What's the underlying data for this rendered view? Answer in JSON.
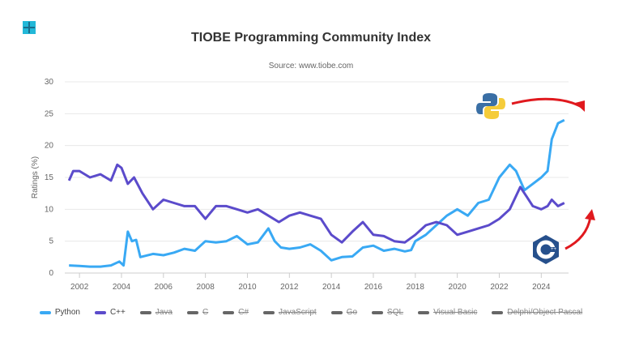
{
  "chart_data": {
    "type": "line",
    "title": "TIOBE Programming Community Index",
    "subtitle": "Source: www.tiobe.com",
    "xlabel": "",
    "ylabel": "Ratings (%)",
    "ylim": [
      0,
      30
    ],
    "xlim": [
      2001.3,
      2025.3
    ],
    "yticks": [
      0,
      5,
      10,
      15,
      20,
      25,
      30
    ],
    "xticks": [
      2002,
      2004,
      2006,
      2008,
      2010,
      2012,
      2014,
      2016,
      2018,
      2020,
      2022,
      2024
    ],
    "grid": true,
    "legend_position": "bottom",
    "series": [
      {
        "name": "Python",
        "color": "#39a9f4",
        "visible": true,
        "x": [
          2001.5,
          2002,
          2002.5,
          2003,
          2003.5,
          2003.9,
          2004.1,
          2004.3,
          2004.5,
          2004.7,
          2004.9,
          2005.5,
          2006,
          2006.5,
          2007,
          2007.5,
          2008,
          2008.5,
          2009,
          2009.5,
          2010,
          2010.5,
          2011,
          2011.3,
          2011.6,
          2012,
          2012.5,
          2013,
          2013.5,
          2014,
          2014.5,
          2015,
          2015.5,
          2016,
          2016.5,
          2017,
          2017.5,
          2017.8,
          2018,
          2018.5,
          2019,
          2019.5,
          2020,
          2020.5,
          2021,
          2021.5,
          2022,
          2022.5,
          2022.8,
          2023.2,
          2023.6,
          2024,
          2024.3,
          2024.5,
          2024.8,
          2025.1
        ],
        "y": [
          1.2,
          1.1,
          1.0,
          1.0,
          1.2,
          1.8,
          1.2,
          6.5,
          5.0,
          5.2,
          2.5,
          3.0,
          2.8,
          3.2,
          3.8,
          3.5,
          5.0,
          4.8,
          5.0,
          5.8,
          4.5,
          4.8,
          7.0,
          5.0,
          4.0,
          3.8,
          4.0,
          4.5,
          3.5,
          2.0,
          2.5,
          2.6,
          4.0,
          4.3,
          3.5,
          3.8,
          3.4,
          3.6,
          5.0,
          6.0,
          7.5,
          9.0,
          10.0,
          9.0,
          11.0,
          11.5,
          15.0,
          17.0,
          16.0,
          13.0,
          14.0,
          15.0,
          16.0,
          21.0,
          23.5,
          24.0
        ]
      },
      {
        "name": "C++",
        "color": "#5b4bcb",
        "visible": true,
        "x": [
          2001.5,
          2001.7,
          2002,
          2002.5,
          2003,
          2003.5,
          2003.8,
          2004,
          2004.3,
          2004.6,
          2005,
          2005.5,
          2006,
          2006.5,
          2007,
          2007.5,
          2008,
          2008.5,
          2009,
          2009.5,
          2010,
          2010.5,
          2011,
          2011.5,
          2012,
          2012.5,
          2013,
          2013.5,
          2014,
          2014.5,
          2015,
          2015.5,
          2016,
          2016.5,
          2017,
          2017.5,
          2018,
          2018.5,
          2019,
          2019.5,
          2020,
          2020.5,
          2021,
          2021.5,
          2022,
          2022.5,
          2023,
          2023.3,
          2023.6,
          2024,
          2024.3,
          2024.5,
          2024.8,
          2025.1
        ],
        "y": [
          14.5,
          16.0,
          16.0,
          15.0,
          15.5,
          14.5,
          17.0,
          16.5,
          14.0,
          15.0,
          12.5,
          10.0,
          11.5,
          11.0,
          10.5,
          10.5,
          8.5,
          10.5,
          10.5,
          10.0,
          9.5,
          10.0,
          9.0,
          8.0,
          9.0,
          9.5,
          9.0,
          8.5,
          6.0,
          4.8,
          6.5,
          8.0,
          6.0,
          5.8,
          5.0,
          4.8,
          6.0,
          7.5,
          8.0,
          7.5,
          6.0,
          6.5,
          7.0,
          7.5,
          8.5,
          10.0,
          13.5,
          12.0,
          10.5,
          10.0,
          10.5,
          11.5,
          10.5,
          11.0
        ]
      },
      {
        "name": "Java",
        "visible": false
      },
      {
        "name": "C",
        "visible": false
      },
      {
        "name": "C#",
        "visible": false
      },
      {
        "name": "JavaScript",
        "visible": false
      },
      {
        "name": "Go",
        "visible": false
      },
      {
        "name": "SQL",
        "visible": false
      },
      {
        "name": "Visual Basic",
        "visible": false
      },
      {
        "name": "Delphi/Object Pascal",
        "visible": false
      }
    ],
    "annotations": [
      {
        "icon": "python-logo",
        "target": "Python"
      },
      {
        "icon": "cpp-logo",
        "target": "C++"
      }
    ]
  },
  "hidden_color": "#666666",
  "arrow_color": "#e0191e"
}
